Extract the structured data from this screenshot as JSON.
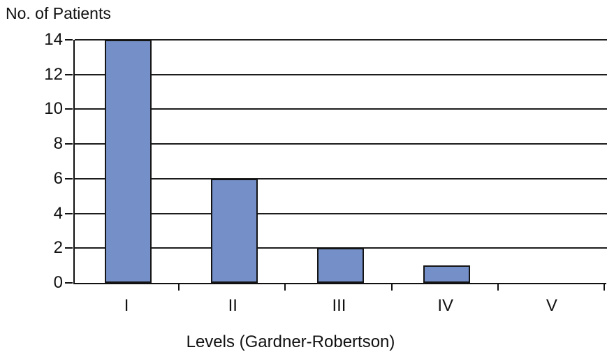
{
  "chart_data": {
    "type": "bar",
    "title": "",
    "ylabel": "No. of Patients",
    "xlabel": "Levels (Gardner-Robertson)",
    "categories": [
      "I",
      "II",
      "III",
      "IV",
      "V"
    ],
    "values": [
      14,
      6,
      2,
      1,
      0
    ],
    "ylim": [
      0,
      14
    ],
    "ytick_step": 2,
    "yticks": [
      0,
      2,
      4,
      6,
      8,
      10,
      12,
      14
    ],
    "grid": true,
    "legend_position": "none",
    "bar_color": "#7590C8",
    "bar_border_color": "#141414",
    "axis_color": "#111111",
    "background_color": "#ffffff"
  }
}
